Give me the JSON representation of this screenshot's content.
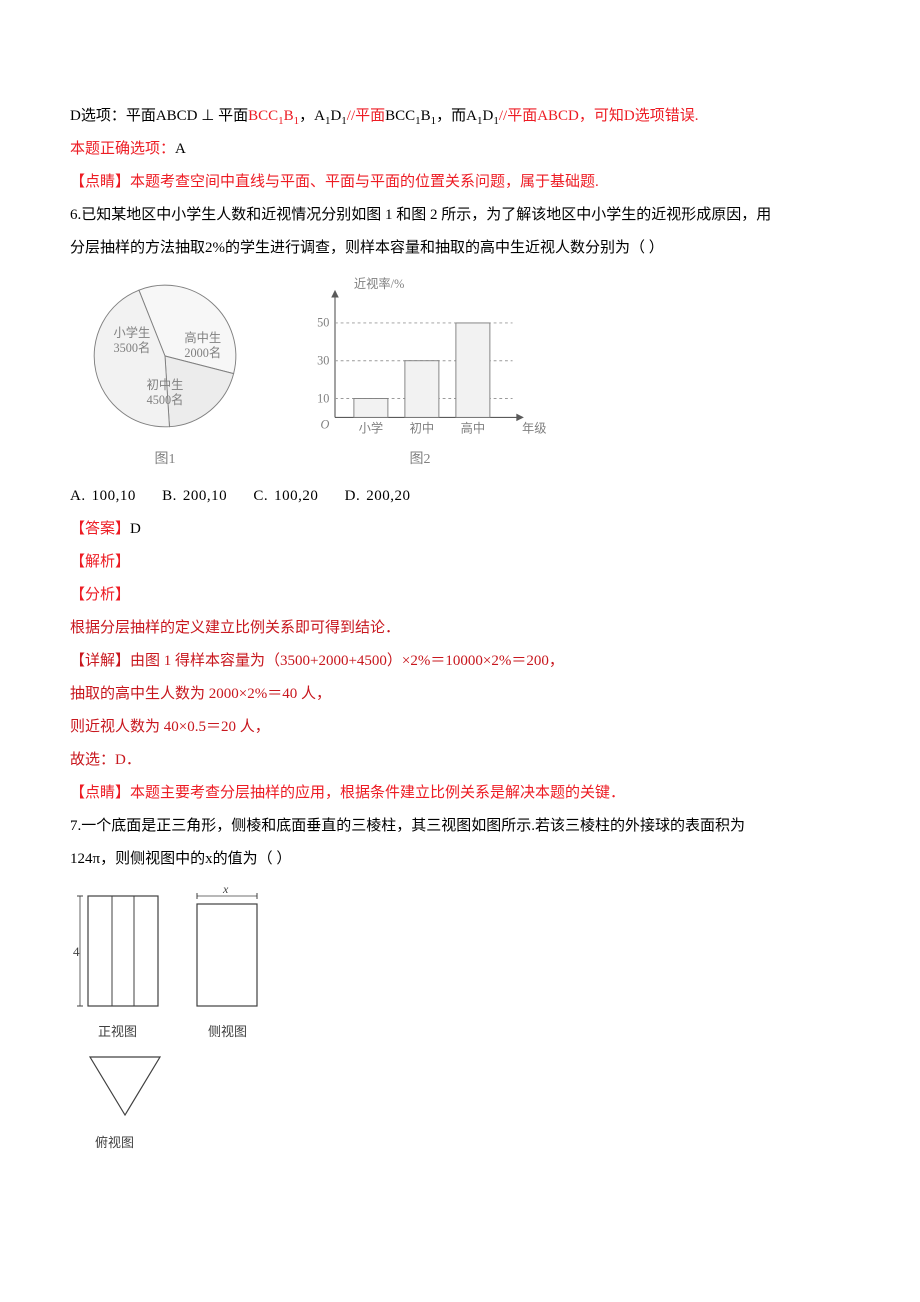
{
  "p5": {
    "l1": {
      "a": "D选项：平面ABCD ⊥ 平面",
      "b": "BCC",
      "sub1": "1",
      "c": "B",
      "sub2": "1",
      "d": "，A",
      "sub3": "1",
      "e": "D",
      "sub4": "1",
      "f": "//平面",
      "g": "BCC",
      "sub5": "1",
      "h": "B",
      "sub6": "1",
      "i": "，而A",
      "sub7": "1",
      "j": "D",
      "sub8": "1",
      "k": "//平面ABCD，可知D选项错误."
    },
    "l2a": "本题正确选项：",
    "l2b": "A",
    "l3": "【点睛】本题考查空间中直线与平面、平面与平面的位置关系问题，属于基础题."
  },
  "p6": {
    "l1": "6.已知某地区中小学生人数和近视情况分别如图 1 和图 2 所示，为了解该地区中小学生的近视形成原因，用",
    "l2": "分层抽样的方法抽取2%的学生进行调查，则样本容量和抽取的高中生近视人数分别为（    ）",
    "pie": {
      "title": "",
      "slices": [
        {
          "label": "小学生",
          "sub": "3500名",
          "color": "#f7f7f7"
        },
        {
          "label": "高中生",
          "sub": "2000名",
          "color": "#ececec"
        },
        {
          "label": "初中生",
          "sub": "4500名",
          "color": "#f2f2f2"
        }
      ],
      "stroke": "#808080",
      "text_color": "#808080",
      "fontsize": 13
    },
    "bar": {
      "ylabel": "近视率/%",
      "xlabel": "年级",
      "categories": [
        "小学",
        "初中",
        "高中"
      ],
      "values": [
        10,
        30,
        50
      ],
      "ticks": [
        10,
        30,
        50
      ],
      "axis_color": "#5a5a5a",
      "bar_color": "#f2f2f2",
      "bar_stroke": "#808080",
      "dash_color": "#9a9a9a",
      "text_color": "#808080",
      "fontsize": 13,
      "ylim": [
        0,
        60
      ]
    },
    "caption1": "图1",
    "caption2": "图2",
    "options": {
      "A": "100,10",
      "B": "200,10",
      "C": "100,20",
      "D": "200,20"
    },
    "ans_label": "【答案】",
    "ans_val": "D",
    "s1": "【解析】",
    "s2": "【分析】",
    "s3": "根据分层抽样的定义建立比例关系即可得到结论．",
    "s4": "【详解】由图 1 得样本容量为（3500+2000+4500）×2%＝10000×2%＝200，",
    "s5": "抽取的高中生人数为 2000×2%＝40 人，",
    "s6": "则近视人数为 40×0.5＝20 人，",
    "s7": "故选：D．",
    "s8": "【点睛】本题主要考查分层抽样的应用，根据条件建立比例关系是解决本题的关键．"
  },
  "p7": {
    "l1": "7.一个底面是正三角形，侧棱和底面垂直的三棱柱，其三视图如图所示.若该三棱柱的外接球的表面积为",
    "l2": "124π，则侧视图中的x的值为（   ）",
    "views": {
      "front_label": "正视图",
      "side_label": "侧视图",
      "top_label": "俯视图",
      "x_label": "x",
      "h_label": "4",
      "stroke": "#404040",
      "fill": "#ffffff"
    }
  }
}
